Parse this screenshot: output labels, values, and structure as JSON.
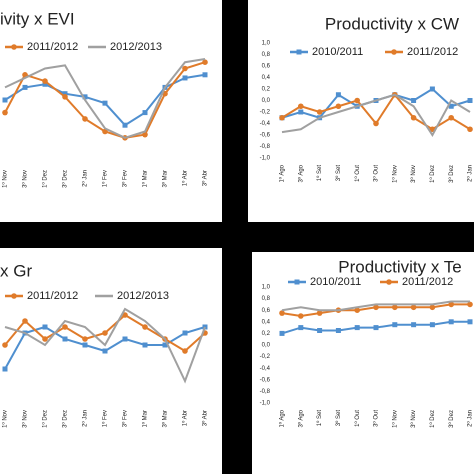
{
  "chart_data": [
    {
      "type": "line",
      "title": "ivity x EVI",
      "categories": [
        "1º Nov",
        "3º Nov",
        "1º Dez",
        "3º Dez",
        "2º Jan",
        "1º Fev",
        "3º Fev",
        "1º Mar",
        "3º Mar",
        "1º Abr",
        "3º Abr"
      ],
      "ylim": [
        -1,
        1
      ],
      "series": [
        {
          "color": "#4f8fcf",
          "marker": "square",
          "values": [
            0,
            0.2,
            0.25,
            0.1,
            0.05,
            -0.05,
            -0.4,
            -0.2,
            0.2,
            0.35,
            0.4
          ]
        },
        {
          "name": "2011/2012",
          "color": "#e07b2a",
          "marker": "circle",
          "values": [
            -0.2,
            0.4,
            0.3,
            0.05,
            -0.3,
            -0.5,
            -0.6,
            -0.55,
            0.1,
            0.5,
            0.6
          ]
        },
        {
          "name": "2012/2013",
          "color": "#a0a0a0",
          "marker": "none",
          "values": [
            0.2,
            0.35,
            0.5,
            0.55,
            0,
            -0.45,
            -0.6,
            -0.5,
            0.2,
            0.6,
            0.65
          ]
        }
      ]
    },
    {
      "type": "line",
      "title": "Productivity x CW",
      "categories": [
        "1º Ago",
        "3º Ago",
        "1º Set",
        "3º Set",
        "1º Out",
        "3º Out",
        "1º Nov",
        "3º Nov",
        "1º Dez",
        "3º Dez",
        "2º Jan"
      ],
      "ylim": [
        -1,
        1
      ],
      "yticks": [
        {
          "value": 1,
          "label": "1,0"
        },
        {
          "value": 0.8,
          "label": "0,8"
        },
        {
          "value": 0.6,
          "label": "0,6"
        },
        {
          "value": 0.4,
          "label": "0,4"
        },
        {
          "value": 0.2,
          "label": "0,2"
        },
        {
          "value": 0,
          "label": "0,0"
        },
        {
          "value": -0.2,
          "label": "-0,2"
        },
        {
          "value": -0.4,
          "label": "-0,4"
        },
        {
          "value": -0.6,
          "label": "-0,6"
        },
        {
          "value": -0.8,
          "label": "-0,8"
        },
        {
          "value": -1,
          "label": "-1,0"
        }
      ],
      "series": [
        {
          "name": "2010/2011",
          "color": "#4f8fcf",
          "marker": "square",
          "values": [
            -0.3,
            -0.2,
            -0.3,
            0.1,
            -0.1,
            0,
            0.1,
            0,
            0.2,
            -0.1,
            0
          ]
        },
        {
          "name": "2011/2012",
          "color": "#e07b2a",
          "marker": "circle",
          "values": [
            -0.3,
            -0.1,
            -0.2,
            -0.1,
            0,
            -0.4,
            0.1,
            -0.3,
            -0.5,
            -0.3,
            -0.5
          ]
        },
        {
          "color": "#a0a0a0",
          "marker": "none",
          "values": [
            -0.55,
            -0.5,
            -0.3,
            -0.2,
            -0.1,
            0,
            0.1,
            -0.1,
            -0.6,
            0,
            -0.2
          ]
        }
      ]
    },
    {
      "type": "line",
      "title": "x Gr",
      "categories": [
        "1º Nov",
        "3º Nov",
        "1º Dez",
        "3º Dez",
        "2º Jan",
        "1º Fev",
        "3º Fev",
        "1º Mar",
        "3º Mar",
        "1º Abr",
        "3º Abr"
      ],
      "ylim": [
        -1,
        1
      ],
      "series": [
        {
          "color": "#4f8fcf",
          "marker": "square",
          "values": [
            -0.4,
            0.2,
            0.3,
            0.1,
            0,
            -0.1,
            0.1,
            0,
            0,
            0.2,
            0.3
          ]
        },
        {
          "name": "2011/2012",
          "color": "#e07b2a",
          "marker": "circle",
          "values": [
            0,
            0.4,
            0.1,
            0.3,
            0.1,
            0.2,
            0.5,
            0.3,
            0.1,
            -0.1,
            0.2
          ]
        },
        {
          "name": "2012/2013",
          "color": "#a0a0a0",
          "marker": "none",
          "values": [
            0.3,
            0.2,
            0,
            0.4,
            0.3,
            0,
            0.6,
            0.4,
            0.1,
            -0.6,
            0.3
          ]
        }
      ]
    },
    {
      "type": "line",
      "title": "Productivity x Te",
      "categories": [
        "1º Ago",
        "3º Ago",
        "1º Set",
        "3º Set",
        "1º Out",
        "3º Out",
        "1º Nov",
        "3º Nov",
        "1º Dez",
        "3º Dez",
        "2º Jan"
      ],
      "ylim": [
        -1,
        1
      ],
      "yticks": [
        {
          "value": 1,
          "label": "1,0"
        },
        {
          "value": 0.8,
          "label": "0,8"
        },
        {
          "value": 0.6,
          "label": "0,6"
        },
        {
          "value": 0.4,
          "label": "0,4"
        },
        {
          "value": 0.2,
          "label": "0,2"
        },
        {
          "value": 0,
          "label": "0,0"
        },
        {
          "value": -0.2,
          "label": "-0,2"
        },
        {
          "value": -0.4,
          "label": "-0,4"
        },
        {
          "value": -0.6,
          "label": "-0,6"
        },
        {
          "value": -0.8,
          "label": "-0,8"
        },
        {
          "value": -1,
          "label": "-1,0"
        }
      ],
      "series": [
        {
          "name": "2010/2011",
          "color": "#4f8fcf",
          "marker": "square",
          "values": [
            0.2,
            0.3,
            0.25,
            0.25,
            0.3,
            0.3,
            0.35,
            0.35,
            0.35,
            0.4,
            0.4
          ]
        },
        {
          "name": "2011/2012",
          "color": "#e07b2a",
          "marker": "circle",
          "values": [
            0.55,
            0.5,
            0.55,
            0.6,
            0.6,
            0.65,
            0.65,
            0.65,
            0.65,
            0.7,
            0.7
          ]
        },
        {
          "color": "#a0a0a0",
          "marker": "none",
          "values": [
            0.6,
            0.65,
            0.6,
            0.6,
            0.65,
            0.7,
            0.7,
            0.7,
            0.7,
            0.75,
            0.75
          ]
        }
      ]
    }
  ]
}
